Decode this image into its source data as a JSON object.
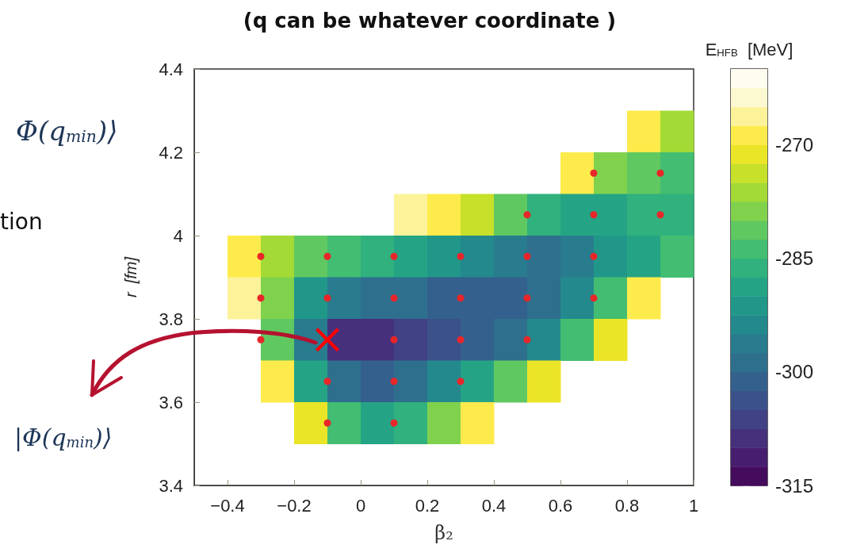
{
  "chart_data": {
    "type": "heatmap",
    "title": "(q can be whatever coordinate )",
    "xlabel": "β₂",
    "ylabel": "r  [fm]",
    "clabel": "E$_{HFB}$  [MeV]",
    "xlim": [
      -0.5,
      1
    ],
    "xticks": [
      -0.4,
      -0.2,
      0,
      0.2,
      0.4,
      0.6,
      0.8,
      1
    ],
    "ylim": [
      3.4,
      4.4
    ],
    "yticks": [
      3.4,
      3.6,
      3.8,
      4,
      4.2,
      4.4
    ],
    "clim": [
      -315,
      -260
    ],
    "cticks": [
      -315,
      -300,
      -285,
      -270
    ],
    "x": [
      -0.45,
      -0.35,
      -0.25,
      -0.15,
      -0.05,
      0.05,
      0.15,
      0.25,
      0.35,
      0.45,
      0.55,
      0.65,
      0.75,
      0.85,
      0.95
    ],
    "y": [
      4.25,
      4.15,
      4.05,
      3.95,
      3.85,
      3.75,
      3.65,
      3.55
    ],
    "cells": [
      [
        null,
        null,
        null,
        null,
        null,
        null,
        null,
        null,
        null,
        null,
        null,
        null,
        null,
        -268,
        -276
      ],
      [
        null,
        null,
        null,
        null,
        null,
        null,
        null,
        null,
        null,
        null,
        null,
        -270,
        -278,
        -282,
        -285
      ],
      [
        null,
        null,
        null,
        null,
        null,
        null,
        -266,
        -270,
        -275,
        -281,
        -286,
        -290,
        -290,
        -287,
        -286
      ],
      [
        null,
        -268,
        -276,
        -282,
        -285,
        -287,
        -289,
        -291,
        -294,
        -297,
        -298,
        -296,
        -292,
        -288,
        -285
      ],
      [
        null,
        -266,
        -280,
        -292,
        -297,
        -299,
        -300,
        -301,
        -302,
        -301,
        -299,
        -294,
        -284,
        -270,
        null
      ],
      [
        null,
        null,
        -282,
        -297,
        -309,
        -310,
        -306,
        -303,
        -302,
        -299,
        -294,
        -284,
        -272,
        null,
        null
      ],
      [
        null,
        null,
        -268,
        -290,
        -299,
        -301,
        -299,
        -295,
        -290,
        -282,
        -272,
        null,
        null,
        null,
        null
      ],
      [
        null,
        null,
        null,
        -272,
        -285,
        -288,
        -286,
        -280,
        -270,
        null,
        null,
        null,
        null,
        null,
        null
      ]
    ],
    "series": [
      {
        "type": "scatter",
        "color": "#e8262a",
        "marker": "circle",
        "x": [
          -0.3,
          -0.1,
          0.1,
          0.3,
          0.5,
          0.7,
          -0.3,
          -0.1,
          0.1,
          0.3,
          0.5,
          0.7,
          -0.3,
          0.1,
          0.3,
          0.5,
          -0.1,
          0.1,
          0.3,
          -0.1,
          0.1,
          0.5,
          0.7,
          0.9,
          0.7,
          0.9
        ],
        "values": [
          3.95,
          3.95,
          3.95,
          3.95,
          3.95,
          3.95,
          3.85,
          3.85,
          3.85,
          3.85,
          3.85,
          3.85,
          3.75,
          3.75,
          3.75,
          3.75,
          3.65,
          3.65,
          3.65,
          3.55,
          3.55,
          4.05,
          4.05,
          4.05,
          4.15,
          4.15
        ]
      },
      {
        "type": "scatter",
        "color": "#ff0000",
        "marker": "cross",
        "x": [
          -0.1
        ],
        "values": [
          3.75
        ]
      }
    ],
    "annotations": [
      "Φ(q$_{min}$)⟩",
      "tion",
      "|Φ(q$_{min}$)⟩"
    ],
    "grid": false
  }
}
